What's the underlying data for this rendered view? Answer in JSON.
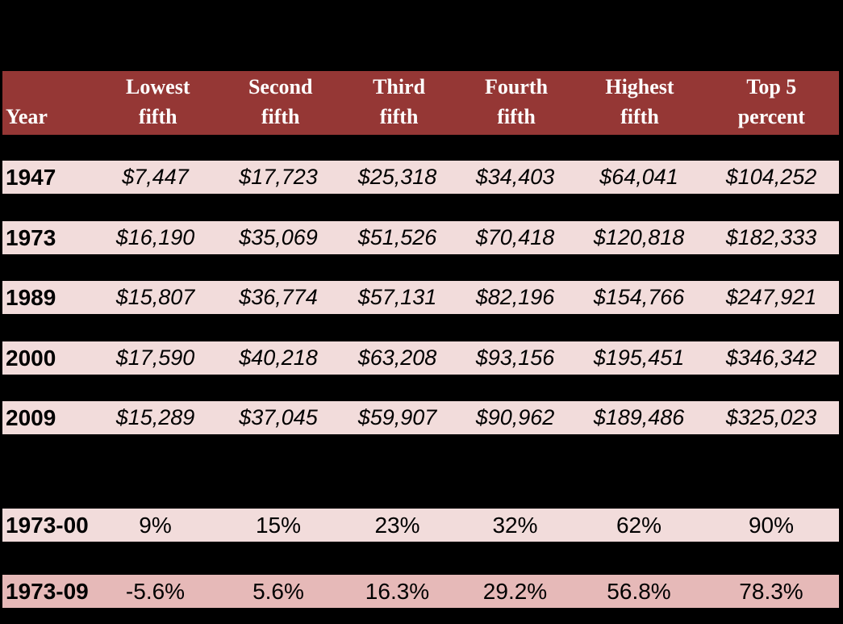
{
  "colors": {
    "page_bg": "#000000",
    "header_bg": "#953735",
    "header_text": "#ffffff",
    "row_bg": "#f2dcdb",
    "row_alt_bg": "#e6b9b8",
    "cell_text": "#000000"
  },
  "table": {
    "header": {
      "year": "Year",
      "cols": [
        {
          "l1": "Lowest",
          "l2": "fifth"
        },
        {
          "l1": "Second",
          "l2": "fifth"
        },
        {
          "l1": "Third",
          "l2": "fifth"
        },
        {
          "l1": "Fourth",
          "l2": "fifth"
        },
        {
          "l1": "Highest",
          "l2": "fifth"
        },
        {
          "l1": "Top 5",
          "l2": "percent"
        }
      ]
    },
    "dollar_rows": [
      {
        "year": "1947",
        "values": [
          "$7,447",
          "$17,723",
          "$25,318",
          "$34,403",
          "$64,041",
          "$104,252"
        ]
      },
      {
        "year": "1973",
        "values": [
          "$16,190",
          "$35,069",
          "$51,526",
          "$70,418",
          "$120,818",
          "$182,333"
        ]
      },
      {
        "year": "1989",
        "values": [
          "$15,807",
          "$36,774",
          "$57,131",
          "$82,196",
          "$154,766",
          "$247,921"
        ]
      },
      {
        "year": "2000",
        "values": [
          "$17,590",
          "$40,218",
          "$63,208",
          "$93,156",
          "$195,451",
          "$346,342"
        ]
      },
      {
        "year": "2009",
        "values": [
          "$15,289",
          "$37,045",
          "$59,907",
          "$90,962",
          "$189,486",
          "$325,023"
        ]
      }
    ],
    "percent_rows": [
      {
        "year": "1973-00",
        "values": [
          "9%",
          "15%",
          "23%",
          "32%",
          "62%",
          "90%"
        ]
      },
      {
        "year": "1973-09",
        "values": [
          "-5.6%",
          "5.6%",
          "16.3%",
          "29.2%",
          "56.8%",
          "78.3%"
        ]
      }
    ]
  },
  "chart_data": {
    "type": "table",
    "columns": [
      "Year",
      "Lowest fifth",
      "Second fifth",
      "Third fifth",
      "Fourth fifth",
      "Highest fifth",
      "Top 5 percent"
    ],
    "rows": [
      [
        "1947",
        "$7,447",
        "$17,723",
        "$25,318",
        "$34,403",
        "$64,041",
        "$104,252"
      ],
      [
        "1973",
        "$16,190",
        "$35,069",
        "$51,526",
        "$70,418",
        "$120,818",
        "$182,333"
      ],
      [
        "1989",
        "$15,807",
        "$36,774",
        "$57,131",
        "$82,196",
        "$154,766",
        "$247,921"
      ],
      [
        "2000",
        "$17,590",
        "$40,218",
        "$63,208",
        "$93,156",
        "$195,451",
        "$346,342"
      ],
      [
        "2009",
        "$15,289",
        "$37,045",
        "$59,907",
        "$90,962",
        "$189,486",
        "$325,023"
      ],
      [
        "1973-00",
        "9%",
        "15%",
        "23%",
        "32%",
        "62%",
        "90%"
      ],
      [
        "1973-09",
        "-5.6%",
        "5.6%",
        "16.3%",
        "29.2%",
        "56.8%",
        "78.3%"
      ]
    ]
  }
}
